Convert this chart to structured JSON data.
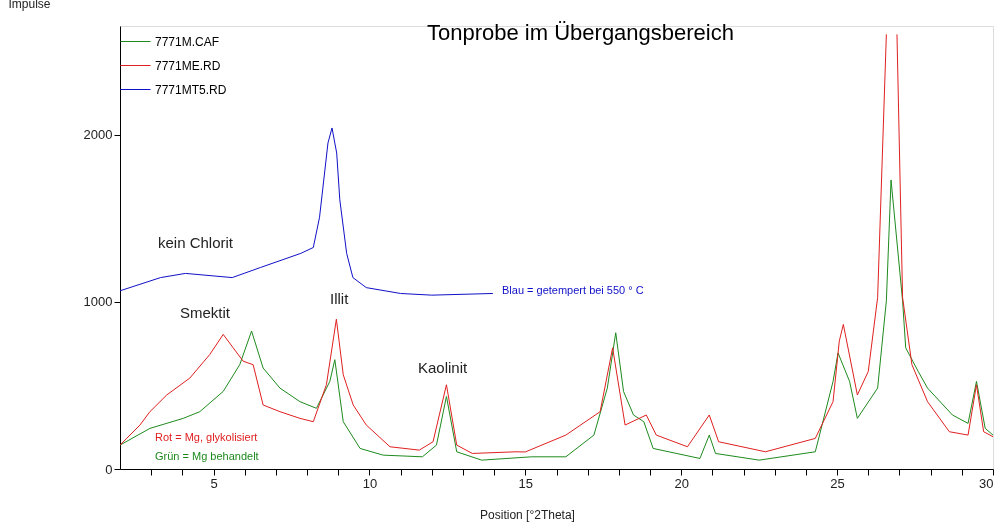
{
  "chart_data": {
    "type": "line",
    "title": "Tonprobe im Übergangsbereich",
    "xlabel": "Position [°2Theta]",
    "ylabel": "Impulse",
    "xlim": [
      2,
      30
    ],
    "ylim": [
      0,
      2650
    ],
    "xticks": [
      {
        "value": 3,
        "label": null
      },
      {
        "value": 4,
        "label": null
      },
      5,
      {
        "value": 6,
        "label": null
      },
      {
        "value": 7,
        "label": null
      },
      {
        "value": 8,
        "label": null
      },
      {
        "value": 9,
        "label": null
      },
      10,
      {
        "value": 11,
        "label": null
      },
      {
        "value": 12,
        "label": null
      },
      {
        "value": 13,
        "label": null
      },
      {
        "value": 14,
        "label": null
      },
      15,
      {
        "value": 16,
        "label": null
      },
      {
        "value": 17,
        "label": null
      },
      {
        "value": 18,
        "label": null
      },
      {
        "value": 19,
        "label": null
      },
      20,
      {
        "value": 21,
        "label": null
      },
      {
        "value": 22,
        "label": null
      },
      {
        "value": 23,
        "label": null
      },
      {
        "value": 24,
        "label": null
      },
      25,
      {
        "value": 26,
        "label": null
      },
      {
        "value": 27,
        "label": null
      },
      {
        "value": 28,
        "label": null
      },
      {
        "value": 29,
        "label": null
      },
      30
    ],
    "yticks": [
      0,
      1000,
      2000
    ],
    "grid": false,
    "legend": "top left",
    "marker": "none",
    "line_style": "solid",
    "series": [
      {
        "name": "7771M.CAF",
        "color": "#1e8a1e",
        "x": [
          2.0,
          2.96,
          4.03,
          4.56,
          5.31,
          5.84,
          6.22,
          6.59,
          7.13,
          7.77,
          8.3,
          8.73,
          8.89,
          9.16,
          9.7,
          10.44,
          11.7,
          12.15,
          12.47,
          12.8,
          13.6,
          15.2,
          16.3,
          17.2,
          17.63,
          17.9,
          18.15,
          18.47,
          18.8,
          19.1,
          20.6,
          20.9,
          21.1,
          22.5,
          24.3,
          24.87,
          25.03,
          25.4,
          25.65,
          26.3,
          26.58,
          26.73,
          27.1,
          27.2,
          27.6,
          27.9,
          28.7,
          29.2,
          29.47,
          29.75,
          30.0
        ],
        "values": [
          143,
          243,
          303,
          343,
          464,
          624,
          825,
          604,
          484,
          403,
          363,
          524,
          654,
          283,
          123,
          83,
          73,
          143,
          434,
          103,
          53,
          73,
          73,
          203,
          484,
          815,
          464,
          323,
          283,
          123,
          63,
          203,
          93,
          53,
          103,
          524,
          694,
          524,
          303,
          484,
          1006,
          1729,
          1006,
          725,
          584,
          484,
          323,
          273,
          524,
          243,
          203
        ]
      },
      {
        "name": "7771ME.RD",
        "color": "#e02020",
        "x": [
          2.0,
          2.64,
          2.96,
          3.5,
          4.24,
          4.88,
          5.31,
          5.63,
          5.95,
          6.27,
          6.59,
          7.13,
          7.77,
          8.2,
          8.62,
          8.94,
          9.16,
          9.48,
          9.9,
          10.66,
          11.6,
          12.04,
          12.47,
          12.8,
          13.3,
          14.7,
          15.0,
          16.3,
          17.4,
          17.8,
          18.2,
          18.88,
          19.2,
          20.2,
          20.9,
          21.2,
          22.7,
          24.3,
          24.87,
          25.07,
          25.2,
          25.65,
          26.0,
          26.3,
          26.58,
          26.75,
          26.92,
          27.1,
          27.4,
          27.9,
          28.6,
          29.2,
          29.47,
          29.7,
          30.0
        ],
        "values": [
          143,
          263,
          343,
          443,
          544,
          685,
          805,
          725,
          645,
          624,
          383,
          343,
          303,
          283,
          504,
          896,
          564,
          383,
          263,
          133,
          113,
          163,
          504,
          143,
          93,
          103,
          102,
          203,
          343,
          725,
          263,
          323,
          203,
          133,
          323,
          163,
          103,
          183,
          403,
          765,
          865,
          443,
          584,
          1026,
          2600,
          null,
          2600,
          1026,
          624,
          403,
          223,
          203,
          504,
          223,
          193
        ]
      },
      {
        "name": "7771MT5.RD",
        "color": "#1010c8",
        "x": [
          2.0,
          3.3,
          4.1,
          5.6,
          6.5,
          7.8,
          8.2,
          8.4,
          8.67,
          8.8,
          8.95,
          9.05,
          9.27,
          9.47,
          9.9,
          11.0,
          12.0,
          13.96
        ],
        "values": [
          1066,
          1145,
          1170,
          1145,
          1205,
          1290,
          1325,
          1506,
          1950,
          2040,
          1890,
          1610,
          1290,
          1145,
          1085,
          1050,
          1040,
          1050
        ]
      }
    ],
    "annotations": [
      "kein Chlorit",
      "Smektit",
      "Illit",
      "Kaolinit",
      "Blau = getempert bei 550 ° C",
      "Rot = Mg, glykolisiert",
      "Grün = Mg behandelt"
    ]
  }
}
